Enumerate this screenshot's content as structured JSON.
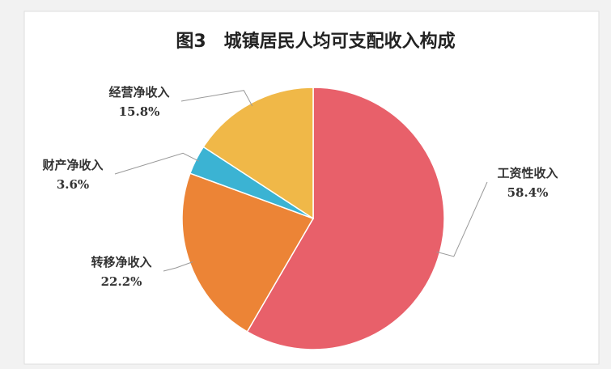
{
  "chart_data": {
    "type": "pie",
    "title": "图3　城镇居民人均可支配收入构成",
    "categories": [
      "工资性收入",
      "转移净收入",
      "财产净收入",
      "经营净收入"
    ],
    "values": [
      58.4,
      22.2,
      3.6,
      15.8
    ],
    "value_labels": [
      "58.4%",
      "22.2%",
      "3.6%",
      "15.8%"
    ],
    "colors": [
      "#e8606a",
      "#ec8436",
      "#3bb3d3",
      "#f0b848"
    ]
  }
}
